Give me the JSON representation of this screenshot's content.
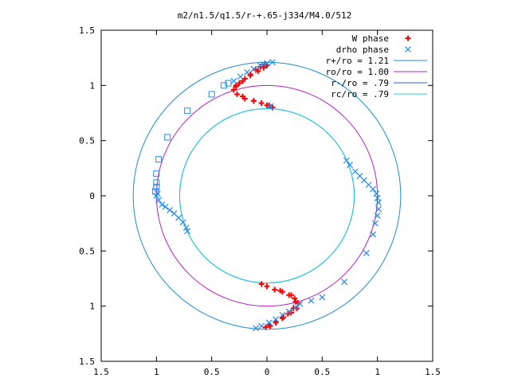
{
  "chart_data": {
    "type": "scatter",
    "title": "m2/n1.5/q1.5/r-+.65-j334/M4.0/512",
    "xlabel": "",
    "ylabel": "",
    "xlim": [
      -1.5,
      1.5
    ],
    "ylim": [
      -1.5,
      1.5
    ],
    "x_ticks": [
      "1.5",
      "1",
      "0.5",
      "0",
      "0.5",
      "1",
      "1.5"
    ],
    "y_ticks": [
      "1.5",
      "1",
      "0.5",
      "0",
      "0.5",
      "1",
      "1.5"
    ],
    "grid": false,
    "legend_position": "top-right",
    "series": [
      {
        "name": "W phase",
        "marker": "plus",
        "color": "#ff0000",
        "points": [
          [
            0.05,
            0.8
          ],
          [
            0.02,
            0.82
          ],
          [
            -0.05,
            0.84
          ],
          [
            -0.12,
            0.86
          ],
          [
            -0.2,
            0.88
          ],
          [
            -0.27,
            0.92
          ],
          [
            -0.3,
            0.96
          ],
          [
            -0.28,
            1.0
          ],
          [
            -0.22,
            1.04
          ],
          [
            -0.15,
            1.09
          ],
          [
            -0.08,
            1.13
          ],
          [
            -0.03,
            1.16
          ],
          [
            0.0,
            1.18
          ],
          [
            -0.02,
            1.19
          ],
          [
            -0.06,
            1.17
          ],
          [
            -0.1,
            1.14
          ],
          [
            -0.15,
            1.1
          ],
          [
            -0.2,
            1.06
          ],
          [
            -0.25,
            1.02
          ],
          [
            -0.28,
            0.99
          ],
          [
            -0.22,
            0.9
          ],
          [
            -0.12,
            0.86
          ],
          [
            0.0,
            0.82
          ],
          [
            -0.05,
            -0.8
          ],
          [
            0.0,
            -0.82
          ],
          [
            0.07,
            -0.85
          ],
          [
            0.14,
            -0.87
          ],
          [
            0.2,
            -0.9
          ],
          [
            0.25,
            -0.93
          ],
          [
            0.28,
            -0.97
          ],
          [
            0.27,
            -1.02
          ],
          [
            0.22,
            -1.06
          ],
          [
            0.15,
            -1.1
          ],
          [
            0.08,
            -1.14
          ],
          [
            0.02,
            -1.17
          ],
          [
            -0.01,
            -1.19
          ],
          [
            0.03,
            -1.18
          ],
          [
            0.08,
            -1.15
          ],
          [
            0.14,
            -1.11
          ],
          [
            0.19,
            -1.07
          ],
          [
            0.24,
            -1.02
          ],
          [
            0.26,
            -0.96
          ],
          [
            0.22,
            -0.9
          ],
          [
            0.12,
            -0.86
          ]
        ]
      },
      {
        "name": "drho phase",
        "marker": "cross",
        "color": "#1e8cf0",
        "points": [
          [
            0.05,
            1.21
          ],
          [
            0.0,
            1.2
          ],
          [
            -0.06,
            1.18
          ],
          [
            -0.12,
            1.15
          ],
          [
            -0.18,
            1.12
          ],
          [
            -0.24,
            1.08
          ],
          [
            -0.3,
            1.04
          ],
          [
            0.03,
            0.81
          ],
          [
            -0.03,
            1.19
          ],
          [
            -1.0,
            0.0
          ],
          [
            -0.98,
            -0.04
          ],
          [
            -0.95,
            -0.08
          ],
          [
            -0.92,
            -0.1
          ],
          [
            -0.88,
            -0.13
          ],
          [
            -0.84,
            -0.16
          ],
          [
            -0.8,
            -0.2
          ],
          [
            -0.76,
            -0.24
          ],
          [
            -0.73,
            -0.29
          ],
          [
            -0.72,
            -0.32
          ],
          [
            -0.99,
            0.02
          ],
          [
            0.72,
            0.32
          ],
          [
            0.75,
            0.28
          ],
          [
            0.8,
            0.22
          ],
          [
            0.84,
            0.18
          ],
          [
            0.88,
            0.14
          ],
          [
            0.92,
            0.1
          ],
          [
            0.96,
            0.06
          ],
          [
            0.99,
            0.02
          ],
          [
            1.0,
            -0.02
          ],
          [
            1.01,
            -0.06
          ],
          [
            1.01,
            -0.12
          ],
          [
            1.0,
            -0.18
          ],
          [
            0.98,
            -0.25
          ],
          [
            0.96,
            -0.35
          ],
          [
            0.9,
            -0.52
          ],
          [
            0.7,
            -0.78
          ],
          [
            -0.1,
            -1.2
          ],
          [
            -0.05,
            -1.18
          ],
          [
            0.02,
            -1.15
          ],
          [
            0.08,
            -1.12
          ],
          [
            0.14,
            -1.08
          ],
          [
            0.2,
            -1.05
          ],
          [
            0.26,
            -1.01
          ],
          [
            0.3,
            -0.98
          ],
          [
            0.5,
            -0.92
          ],
          [
            0.4,
            -0.95
          ]
        ]
      },
      {
        "name": "",
        "marker": "square",
        "color": "#1e8cf0",
        "points": [
          [
            -0.35,
            1.02
          ],
          [
            -0.39,
            1.0
          ],
          [
            -0.5,
            0.92
          ],
          [
            -0.72,
            0.77
          ],
          [
            -0.9,
            0.53
          ],
          [
            -0.98,
            0.33
          ],
          [
            -1.0,
            0.2
          ],
          [
            -1.0,
            0.12
          ],
          [
            -1.0,
            0.08
          ],
          [
            -1.01,
            0.04
          ]
        ]
      }
    ],
    "circles": [
      {
        "name": "r+/ro = 1.21",
        "r": 1.21,
        "color": "#1e8cd0"
      },
      {
        "name": "ro/ro = 1.00",
        "r": 1.0,
        "color": "#b020c0"
      },
      {
        "name": "r-/ro = .79",
        "r": 0.79,
        "color": "#1e64c8"
      },
      {
        "name": "rc/ro = .79",
        "r": 0.79,
        "color": "#20d0d8"
      }
    ]
  }
}
